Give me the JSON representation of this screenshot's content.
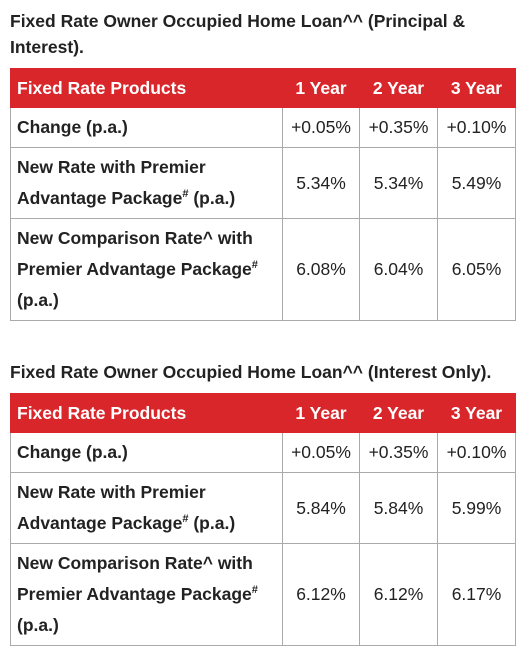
{
  "sections": [
    {
      "title": "Fixed Rate Owner Occupied Home Loan^^ (Principal & Interest).",
      "table": {
        "header": [
          "Fixed Rate Products",
          "1 Year",
          "2 Year",
          "3 Year"
        ],
        "rows": [
          {
            "label": {
              "text": "Change (p.a.)"
            },
            "cells": [
              "+0.05%",
              "+0.35%",
              "+0.10%"
            ]
          },
          {
            "label": {
              "text": "New Rate with Premier Advantage Package",
              "sup": "#",
              "suffix": "(p.a.)"
            },
            "cells": [
              "5.34%",
              "5.34%",
              "5.49%"
            ]
          },
          {
            "label": {
              "text": "New Comparison Rate^ with Premier Advantage Package",
              "sup": "#",
              "suffix": "(p.a.)"
            },
            "cells": [
              "6.08%",
              "6.04%",
              "6.05%"
            ]
          }
        ]
      }
    },
    {
      "title": "Fixed Rate Owner Occupied Home Loan^^ (Interest Only).",
      "table": {
        "header": [
          "Fixed Rate Products",
          "1 Year",
          "2 Year",
          "3 Year"
        ],
        "rows": [
          {
            "label": {
              "text": "Change (p.a.)"
            },
            "cells": [
              "+0.05%",
              "+0.35%",
              "+0.10%"
            ]
          },
          {
            "label": {
              "text": "New Rate with Premier Advantage Package",
              "sup": "#",
              "suffix": "(p.a.)"
            },
            "cells": [
              "5.84%",
              "5.84%",
              "5.99%"
            ]
          },
          {
            "label": {
              "text": "New Comparison Rate^ with Premier Advantage Package",
              "sup": "#",
              "suffix": "(p.a.)"
            },
            "cells": [
              "6.12%",
              "6.12%",
              "6.17%"
            ]
          }
        ]
      }
    }
  ]
}
